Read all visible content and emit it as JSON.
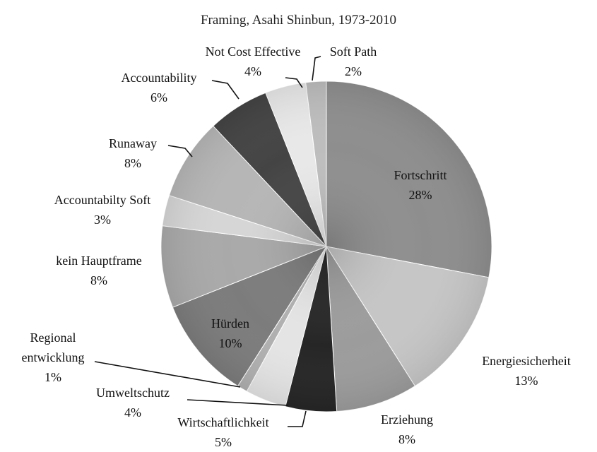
{
  "chart_data": {
    "type": "pie",
    "title": "Framing, Asahi Shinbun, 1973-2010",
    "categories": [
      "Fortschritt",
      "Energiesicherheit",
      "Erziehung",
      "Wirtschaftlichkeit",
      "Umweltschutz",
      "Regional entwicklung",
      "Hürden",
      "kein Hauptframe",
      "Accountabilty Soft",
      "Runaway",
      "Accountability",
      "Not Cost Effective",
      "Soft Path"
    ],
    "values": [
      28,
      13,
      8,
      5,
      4,
      1,
      10,
      8,
      3,
      8,
      6,
      4,
      2
    ],
    "value_labels": [
      "28%",
      "13%",
      "8%",
      "5%",
      "4%",
      "1%",
      "10%",
      "8%",
      "3%",
      "8%",
      "6%",
      "4%",
      "2%"
    ],
    "colors": [
      "#8e8e8e",
      "#c6c6c6",
      "#9c9c9c",
      "#262626",
      "#e4e4e4",
      "#b0b0b0",
      "#7c7c7c",
      "#a9a9a9",
      "#d6d6d6",
      "#b6b6b6",
      "#444444",
      "#e8e8e8",
      "#bdbdbd"
    ]
  }
}
